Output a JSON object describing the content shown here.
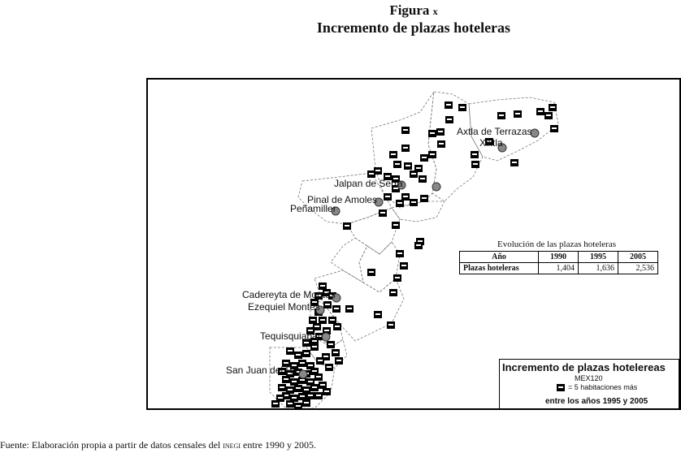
{
  "figure": {
    "label": "Figura",
    "label_suffix": "x",
    "title": "Incremento de plazas hoteleras"
  },
  "map": {
    "towns": [
      {
        "name": "Axtla de Terrazas"
      },
      {
        "name": "Xilitla"
      },
      {
        "name": "Jalpan de Serra"
      },
      {
        "name": "Pinal de Amoles"
      },
      {
        "name": "Peñamiller"
      },
      {
        "name": "Cadereyta de Montes"
      },
      {
        "name": "Ezequiel Montes"
      },
      {
        "name": "Tequisquiapan"
      },
      {
        "name": "San Juan del Río"
      }
    ],
    "icon_name": "hotel-icon",
    "icon_color": "#000000"
  },
  "evolution_table": {
    "caption": "Evolución de las plazas hoteleras",
    "headers": [
      "Año",
      "1990",
      "1995",
      "2005"
    ],
    "row_label": "Plazas hoteleras",
    "values": [
      "1,404",
      "1,636",
      "2,536"
    ]
  },
  "legend": {
    "title": "Incremento de plazas hotelereas",
    "code": "MEX120",
    "item_label": "= 5 habitaciones más",
    "period": "entre los años 1995 y 2005"
  },
  "source": {
    "prefix": "Fuente: Elaboración propia a partir de datos censales del",
    "org": "inegi",
    "suffix": "entre 1990 y 2005."
  }
}
